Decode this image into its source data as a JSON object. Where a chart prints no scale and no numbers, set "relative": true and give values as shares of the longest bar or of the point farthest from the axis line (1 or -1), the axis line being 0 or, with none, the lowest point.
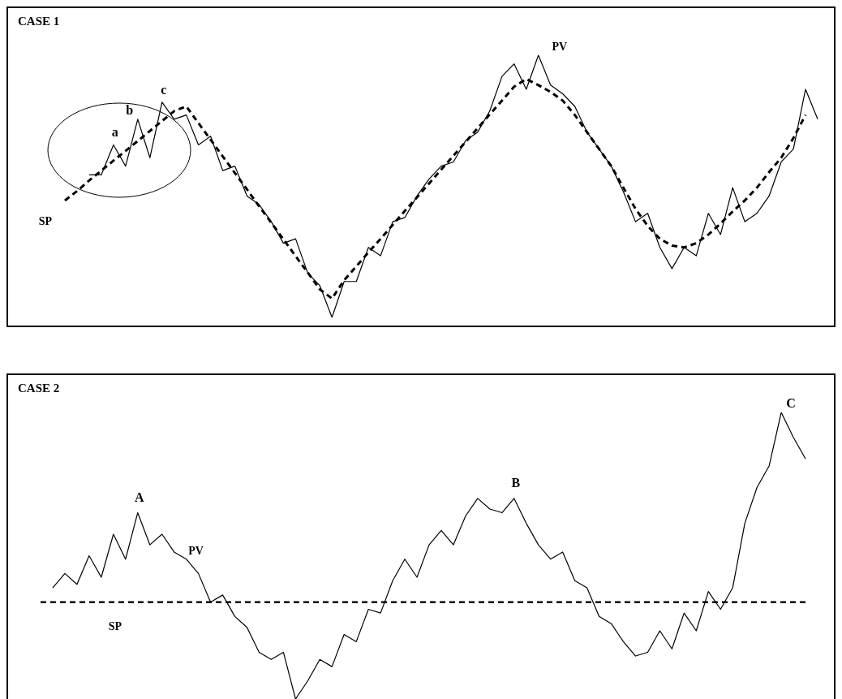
{
  "chart_data": [
    {
      "type": "line",
      "title": "CASE 1",
      "relative": true,
      "legend": false,
      "grid": false,
      "marker": "none",
      "categories": [
        null,
        null,
        null,
        null,
        null,
        null,
        null,
        null,
        null,
        null,
        null,
        null,
        null,
        null,
        null,
        null,
        null,
        null,
        null,
        null,
        null,
        null,
        null,
        null,
        null,
        null,
        null,
        null,
        null,
        null,
        null,
        null,
        null,
        null,
        null,
        null,
        null,
        null,
        null,
        null,
        null,
        null,
        null,
        null,
        null,
        null,
        null,
        null,
        null,
        null,
        null,
        null,
        null,
        null,
        null,
        null,
        null,
        null,
        null,
        null,
        null,
        null,
        null
      ],
      "series": [
        {
          "name": "PV",
          "color": "#000000",
          "line_style": "solid",
          "values": [
            null,
            null,
            0.544,
            0.544,
            0.658,
            0.577,
            0.756,
            0.609,
            0.821,
            0.756,
            0.772,
            0.658,
            0.691,
            0.56,
            0.577,
            0.463,
            0.43,
            0.365,
            0.283,
            0.3,
            0.169,
            0.121,
            0,
            0.137,
            0.137,
            0.267,
            0.235,
            0.365,
            0.381,
            0.463,
            0.528,
            0.577,
            0.593,
            0.674,
            0.707,
            0.788,
            0.919,
            0.967,
            0.87,
            1,
            0.886,
            0.853,
            0.805,
            0.707,
            0.642,
            0.577,
            0.479,
            0.365,
            0.397,
            0.267,
            0.186,
            0.267,
            0.235,
            0.397,
            0.316,
            0.495,
            0.365,
            0.397,
            0.463,
            0.593,
            0.642,
            0.87,
            0.756
          ]
        },
        {
          "name": "SP",
          "color": "#000000",
          "line_style": "dashed",
          "values": [
            0.446,
            0.482,
            0.522,
            0.56,
            0.598,
            0.635,
            0.673,
            0.711,
            0.749,
            0.787,
            0.805,
            0.741,
            0.678,
            0.614,
            0.551,
            0.488,
            0.424,
            0.361,
            0.298,
            0.234,
            0.171,
            0.107,
            0.072,
            0.142,
            0.195,
            0.248,
            0.3,
            0.353,
            0.406,
            0.458,
            0.511,
            0.564,
            0.617,
            0.669,
            0.722,
            0.775,
            0.827,
            0.88,
            0.909,
            0.886,
            0.86,
            0.827,
            0.772,
            0.707,
            0.642,
            0.577,
            0.495,
            0.414,
            0.349,
            0.3,
            0.274,
            0.267,
            0.283,
            0.316,
            0.358,
            0.404,
            0.446,
            0.495,
            0.554,
            0.609,
            0.684,
            0.772,
            null
          ]
        }
      ],
      "annotations": [
        "a",
        "b",
        "c"
      ]
    },
    {
      "type": "line",
      "title": "CASE 2",
      "relative": true,
      "legend": false,
      "grid": false,
      "marker": "none",
      "categories": [
        null,
        null,
        null,
        null,
        null,
        null,
        null,
        null,
        null,
        null,
        null,
        null,
        null,
        null,
        null,
        null,
        null,
        null,
        null,
        null,
        null,
        null,
        null,
        null,
        null,
        null,
        null,
        null,
        null,
        null,
        null,
        null,
        null,
        null,
        null,
        null,
        null,
        null,
        null,
        null,
        null,
        null,
        null,
        null,
        null,
        null,
        null,
        null,
        null,
        null,
        null,
        null,
        null,
        null,
        null,
        null,
        null,
        null,
        null,
        null,
        null,
        null,
        null,
        null,
        null
      ],
      "series": [
        {
          "name": "PV",
          "color": "#000000",
          "line_style": "solid",
          "values": [
            null,
            0.388,
            0.438,
            0.4,
            0.5,
            0.425,
            0.575,
            0.488,
            0.65,
            0.538,
            0.575,
            0.513,
            0.488,
            0.438,
            0.338,
            0.363,
            0.288,
            0.25,
            0.163,
            0.138,
            0.163,
            0,
            0.063,
            0.138,
            0.113,
            0.225,
            0.2,
            0.313,
            0.3,
            0.413,
            0.488,
            0.425,
            0.538,
            0.588,
            0.538,
            0.638,
            0.7,
            0.663,
            0.65,
            0.7,
            0.613,
            0.538,
            0.488,
            0.513,
            0.413,
            0.388,
            0.288,
            0.263,
            0.2,
            0.15,
            0.163,
            0.238,
            0.175,
            0.3,
            0.238,
            0.375,
            0.313,
            0.388,
            0.613,
            0.738,
            0.813,
            1,
            0.913,
            0.838,
            null
          ]
        },
        {
          "name": "SP",
          "color": "#000000",
          "line_style": "dashed",
          "values": [
            0.338,
            0.338,
            0.338,
            0.338,
            0.338,
            0.338,
            0.338,
            0.338,
            0.338,
            0.338,
            0.338,
            0.338,
            0.338,
            0.338,
            0.338,
            0.338,
            0.338,
            0.338,
            0.338,
            0.338,
            0.338,
            0.338,
            0.338,
            0.338,
            0.338,
            0.338,
            0.338,
            0.338,
            0.338,
            0.338,
            0.338,
            0.338,
            0.338,
            0.338,
            0.338,
            0.338,
            0.338,
            0.338,
            0.338,
            0.338,
            0.338,
            0.338,
            0.338,
            0.338,
            0.338,
            0.338,
            0.338,
            0.338,
            0.338,
            0.338,
            0.338,
            0.338,
            0.338,
            0.338,
            0.338,
            0.338,
            0.338,
            0.338,
            0.338,
            0.338,
            0.338,
            0.338,
            0.338,
            0.338,
            null
          ]
        }
      ],
      "annotations": [
        "A",
        "B",
        "C"
      ]
    }
  ]
}
